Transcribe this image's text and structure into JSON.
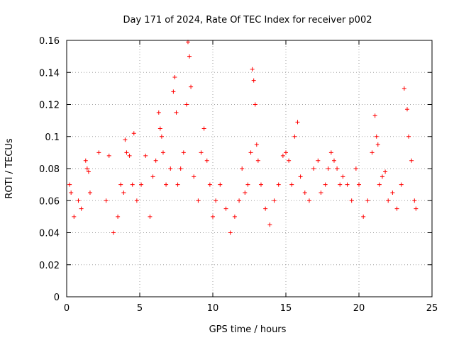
{
  "chart_data": {
    "type": "scatter",
    "title": "Day 171 of 2024, Rate Of TEC Index for receiver p002",
    "xlabel": "GPS time / hours",
    "ylabel": "ROTI / TECUs",
    "xlim": [
      0,
      25
    ],
    "ylim": [
      0,
      0.16
    ],
    "xticks": [
      "0",
      "5",
      "10",
      "15",
      "20",
      "25"
    ],
    "yticks": [
      "0",
      "0.02",
      "0.04",
      "0.06",
      "0.08",
      "0.1",
      "0.12",
      "0.14",
      "0.16"
    ],
    "grid": true,
    "marker": "+",
    "color": "#ff0000",
    "series": [
      {
        "x": [
          0.2,
          0.3,
          0.5,
          0.8,
          1.0,
          1.3,
          1.4,
          1.5,
          1.6,
          2.2,
          2.7,
          2.9,
          3.2,
          3.5,
          3.7,
          3.9,
          4.0,
          4.1,
          4.3,
          4.5,
          4.6,
          4.8,
          5.1,
          5.4,
          5.7,
          5.9,
          6.1,
          6.3,
          6.4,
          6.5,
          6.6,
          6.8,
          7.1,
          7.3,
          7.4,
          7.5,
          7.6,
          7.8,
          8.0,
          8.2,
          8.3,
          8.4,
          8.5,
          8.7,
          9.0,
          9.2,
          9.4,
          9.6,
          9.8,
          10.0,
          10.2,
          10.5,
          10.9,
          11.2,
          11.5,
          11.8,
          12.0,
          12.2,
          12.4,
          12.6,
          12.7,
          12.8,
          12.9,
          13.0,
          13.1,
          13.3,
          13.6,
          13.9,
          14.2,
          14.5,
          14.8,
          15.0,
          15.2,
          15.4,
          15.6,
          15.8,
          16.0,
          16.3,
          16.6,
          16.9,
          17.2,
          17.4,
          17.7,
          17.9,
          18.1,
          18.3,
          18.5,
          18.7,
          18.9,
          19.2,
          19.5,
          19.8,
          20.0,
          20.3,
          20.6,
          20.9,
          21.1,
          21.2,
          21.3,
          21.4,
          21.6,
          21.8,
          22.0,
          22.3,
          22.6,
          22.9,
          23.1,
          23.3,
          23.4,
          23.6,
          23.8,
          23.9
        ],
        "y": [
          0.07,
          0.065,
          0.05,
          0.06,
          0.055,
          0.085,
          0.08,
          0.078,
          0.065,
          0.09,
          0.06,
          0.088,
          0.04,
          0.05,
          0.07,
          0.065,
          0.098,
          0.09,
          0.088,
          0.07,
          0.102,
          0.06,
          0.07,
          0.088,
          0.05,
          0.075,
          0.085,
          0.115,
          0.105,
          0.1,
          0.09,
          0.07,
          0.08,
          0.128,
          0.137,
          0.115,
          0.07,
          0.08,
          0.09,
          0.12,
          0.159,
          0.15,
          0.131,
          0.075,
          0.06,
          0.09,
          0.105,
          0.085,
          0.07,
          0.05,
          0.06,
          0.07,
          0.055,
          0.04,
          0.05,
          0.06,
          0.08,
          0.065,
          0.07,
          0.09,
          0.142,
          0.135,
          0.12,
          0.095,
          0.085,
          0.07,
          0.055,
          0.045,
          0.06,
          0.07,
          0.088,
          0.09,
          0.085,
          0.07,
          0.1,
          0.109,
          0.075,
          0.065,
          0.06,
          0.08,
          0.085,
          0.065,
          0.07,
          0.08,
          0.09,
          0.085,
          0.08,
          0.07,
          0.075,
          0.07,
          0.06,
          0.08,
          0.07,
          0.05,
          0.06,
          0.09,
          0.113,
          0.1,
          0.095,
          0.07,
          0.075,
          0.078,
          0.06,
          0.065,
          0.055,
          0.07,
          0.13,
          0.117,
          0.1,
          0.085,
          0.06,
          0.055
        ]
      }
    ]
  }
}
